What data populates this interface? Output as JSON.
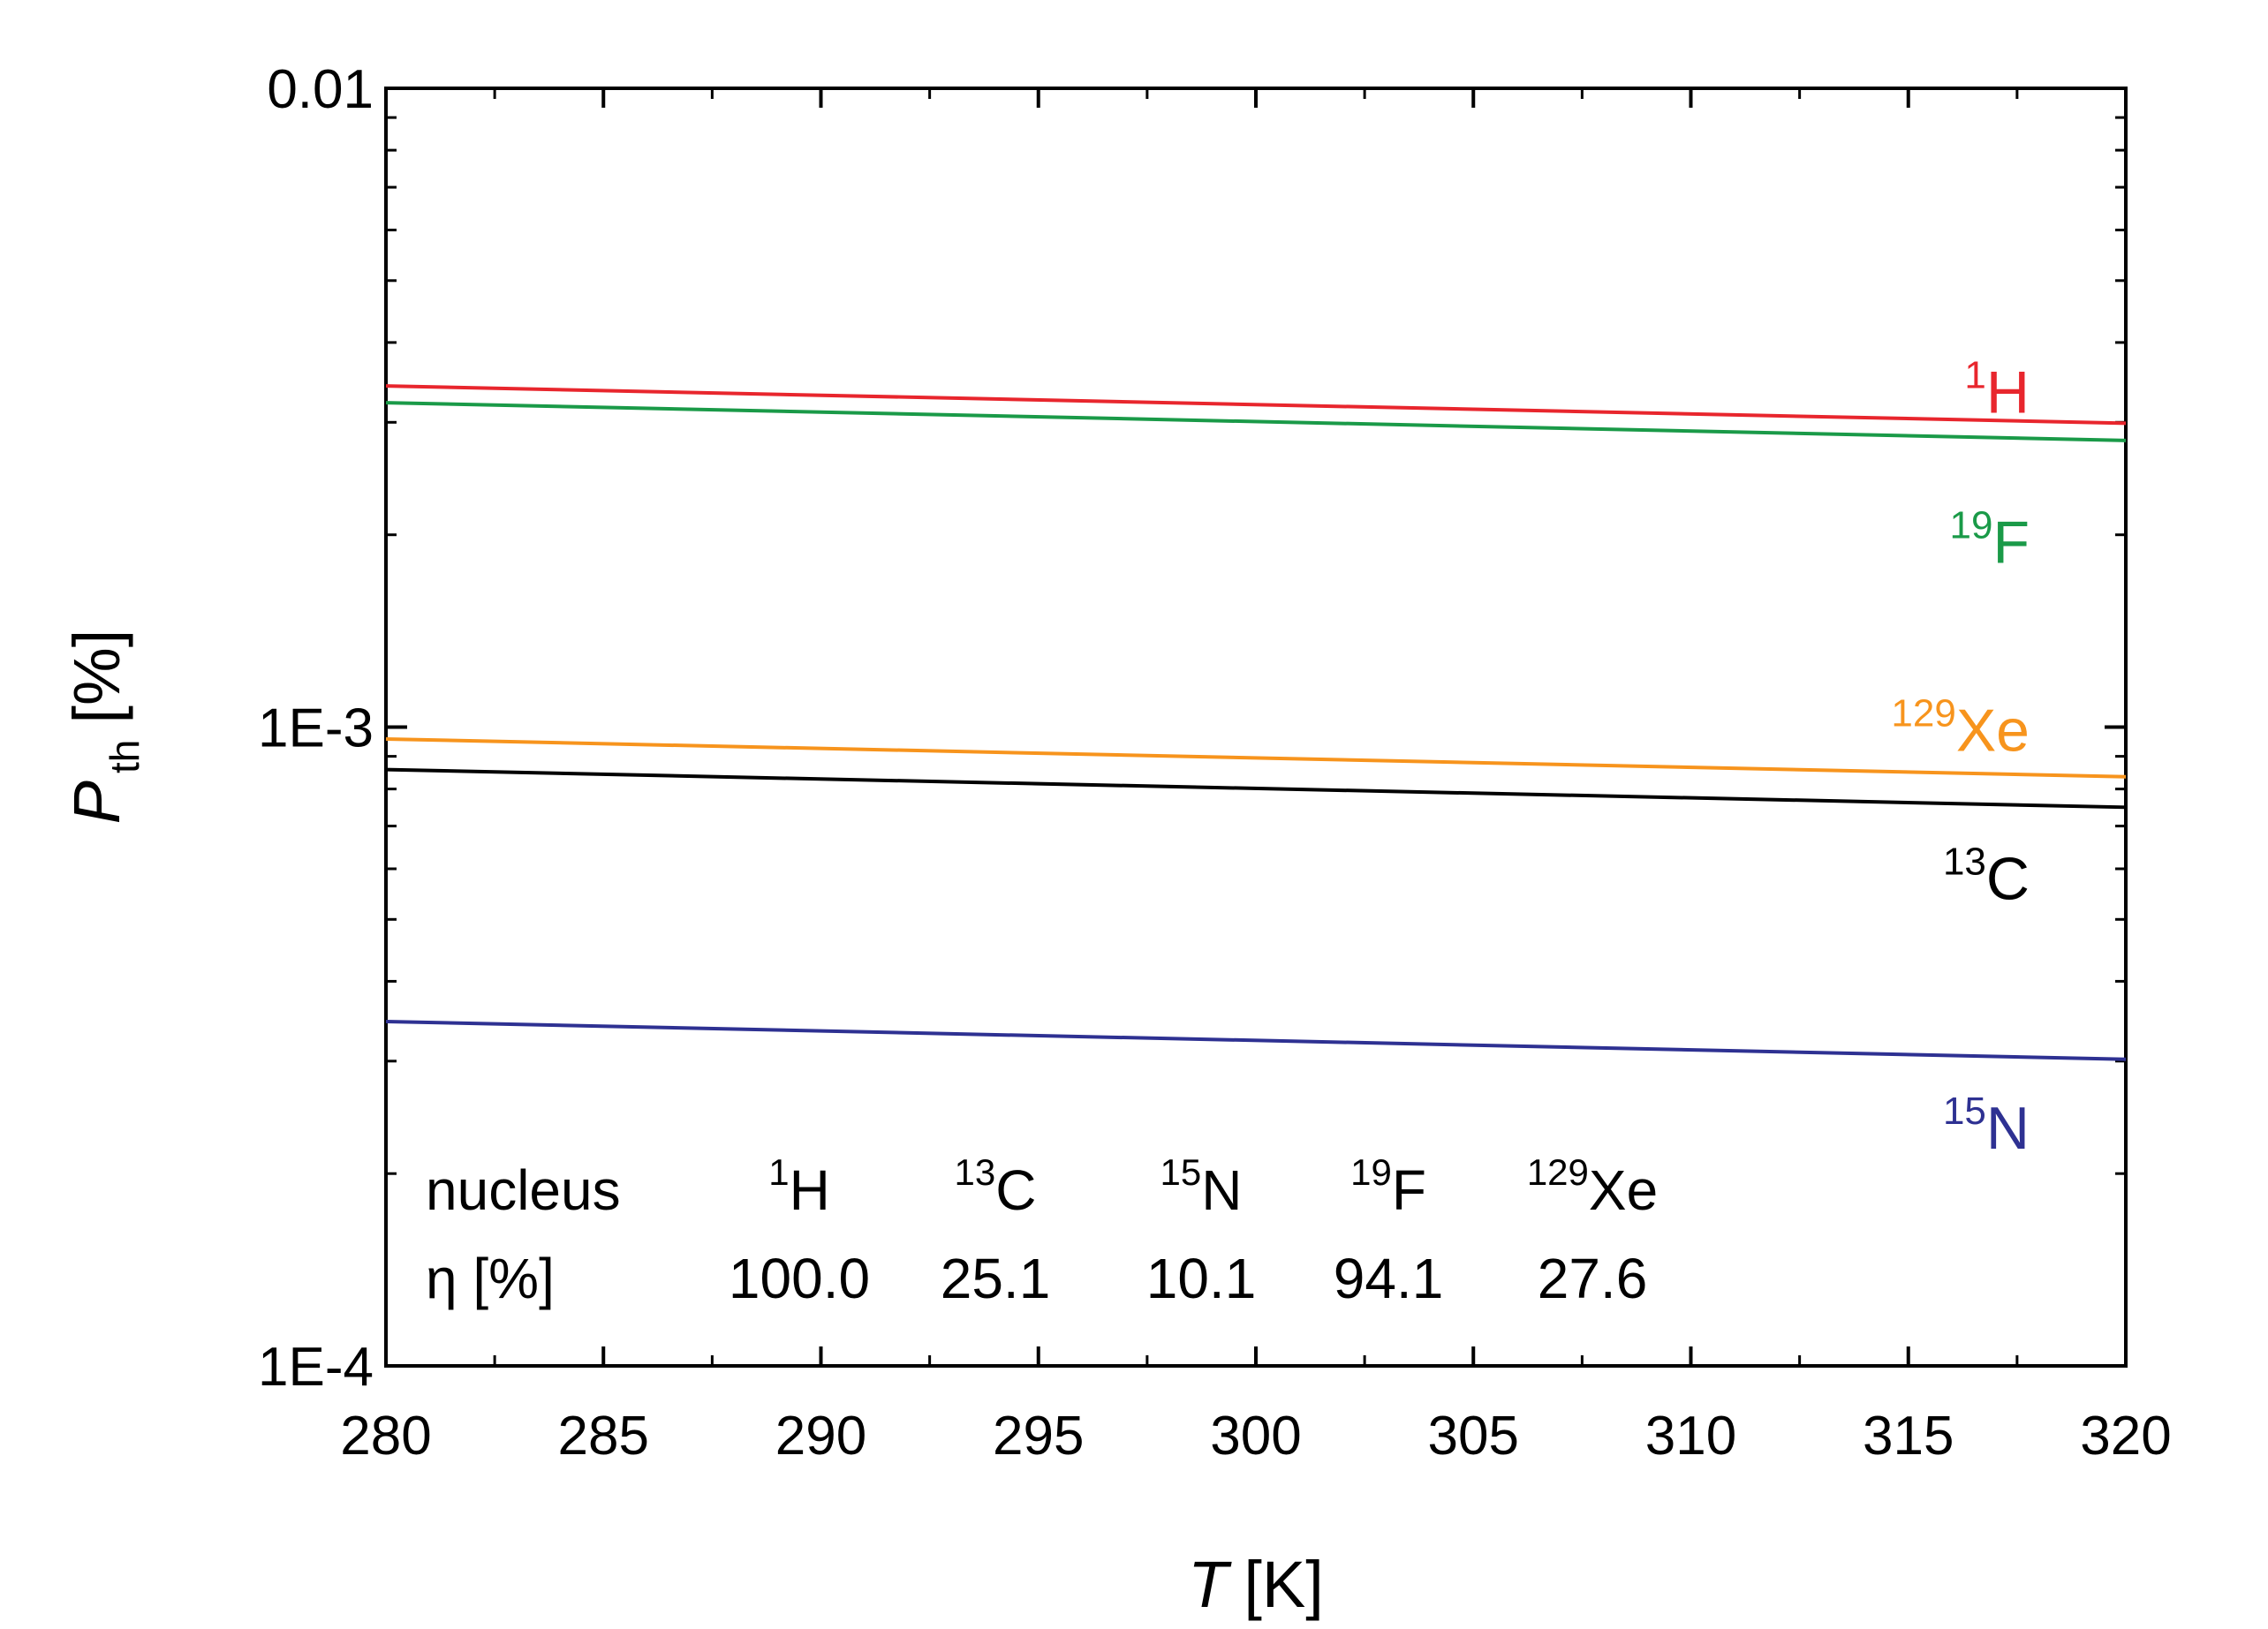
{
  "chart_data": {
    "type": "line",
    "title": "",
    "xlabel": "T",
    "xlabel_unit": "[K]",
    "ylabel": "P",
    "ylabel_subscript": "th",
    "ylabel_unit": "[%]",
    "xlim": [
      280,
      320
    ],
    "ylim": [
      0.0001,
      0.01
    ],
    "yscale": "log",
    "x_ticks": [
      {
        "value": 280,
        "label": "280"
      },
      {
        "value": 285,
        "label": "285"
      },
      {
        "value": 290,
        "label": "290"
      },
      {
        "value": 295,
        "label": "295"
      },
      {
        "value": 300,
        "label": "300"
      },
      {
        "value": 305,
        "label": "305"
      },
      {
        "value": 310,
        "label": "310"
      },
      {
        "value": 315,
        "label": "315"
      },
      {
        "value": 320,
        "label": "320"
      }
    ],
    "y_ticks": [
      {
        "value": 0.0001,
        "label": "1E-4"
      },
      {
        "value": 0.001,
        "label": "1E-3"
      },
      {
        "value": 0.01,
        "label": "0.01"
      }
    ],
    "x": [
      280,
      320
    ],
    "series": [
      {
        "name": "1H",
        "sup": "1",
        "element": "H",
        "color": "#e8262d",
        "values": [
          0.00342,
          0.00299
        ],
        "label_y": 0.00335
      },
      {
        "name": "19F",
        "sup": "19",
        "element": "F",
        "color": "#1a9a48",
        "values": [
          0.00322,
          0.00281
        ],
        "label_y": 0.00195
      },
      {
        "name": "129Xe",
        "sup": "129",
        "element": "Xe",
        "color": "#f7941d",
        "values": [
          0.000958,
          0.000836
        ],
        "label_y": 0.00099
      },
      {
        "name": "13C",
        "sup": "13",
        "element": "C",
        "color": "#000000",
        "values": [
          0.000858,
          0.000749
        ],
        "label_y": 0.00058
      },
      {
        "name": "15N",
        "sup": "15",
        "element": "N",
        "color": "#2e3192",
        "values": [
          0.000346,
          0.000302
        ],
        "label_y": 0.000236
      }
    ],
    "annotation_table": {
      "row_headers": [
        "nucleus",
        "η [%]"
      ],
      "columns": [
        {
          "sup": "1",
          "element": "H",
          "eta": "100.0"
        },
        {
          "sup": "13",
          "element": "C",
          "eta": "25.1"
        },
        {
          "sup": "15",
          "element": "N",
          "eta": "10.1"
        },
        {
          "sup": "19",
          "element": "F",
          "eta": "94.1"
        },
        {
          "sup": "129",
          "element": "Xe",
          "eta": "27.6"
        }
      ]
    }
  }
}
